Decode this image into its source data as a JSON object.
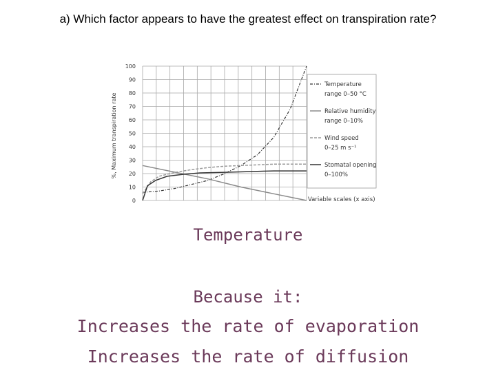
{
  "question": "a) Which factor appears to have the greatest effect on transpiration rate?",
  "answer": {
    "title": "Temperature",
    "because": "Because it:",
    "reasons": [
      "Increases the rate of evaporation",
      "Increases the rate of diffusion"
    ]
  },
  "colors": {
    "answer_text": "#6b3a5a",
    "grid": "#a8a8a8",
    "series_dark": "#333333",
    "series_mid": "#8a8a8a",
    "series_light": "#9a9a9a"
  },
  "chart_data": {
    "type": "line",
    "ylabel": "%, Maximum transpiration rate",
    "xlabel": "Variable scales (x axis)",
    "ylim": [
      0,
      100
    ],
    "xlim": [
      0,
      1
    ],
    "yticks": [
      0,
      10,
      20,
      30,
      40,
      50,
      60,
      70,
      80,
      90,
      100
    ],
    "grid": true,
    "legend_position": "right",
    "series": [
      {
        "name": "Temperature range 0–50 °C",
        "name_lines": [
          "Temperature",
          "range 0–50 °C"
        ],
        "style": "dash-dot",
        "x": [
          0,
          0.1,
          0.2,
          0.3,
          0.4,
          0.5,
          0.6,
          0.7,
          0.8,
          0.9,
          1.0
        ],
        "y": [
          6,
          7,
          9,
          12,
          15,
          20,
          26,
          34,
          47,
          68,
          100
        ]
      },
      {
        "name": "Relative humidity range 0–10%",
        "name_lines": [
          "Relative humidity",
          "range 0–10%"
        ],
        "style": "solid-grey",
        "x": [
          0,
          0.2,
          0.4,
          0.6,
          0.8,
          1.0
        ],
        "y": [
          26,
          21,
          16,
          10,
          5,
          0
        ]
      },
      {
        "name": "Wind speed 0–25 m s⁻¹",
        "name_lines": [
          "Wind speed",
          "0–25 m s⁻¹"
        ],
        "style": "dashed",
        "x": [
          0,
          0.05,
          0.1,
          0.2,
          0.3,
          0.4,
          0.5,
          0.6,
          0.7,
          0.8,
          0.9,
          1.0
        ],
        "y": [
          5,
          14,
          18,
          21,
          23,
          24.5,
          25.5,
          26,
          26.5,
          27,
          27,
          27
        ]
      },
      {
        "name": "Stomatal opening 0–100%",
        "name_lines": [
          "Stomatal opening",
          "0–100%"
        ],
        "style": "solid-dark",
        "x": [
          0,
          0.03,
          0.08,
          0.15,
          0.25,
          0.35,
          0.5,
          0.65,
          0.8,
          1.0
        ],
        "y": [
          0,
          11,
          15,
          18,
          19.5,
          20.5,
          21,
          21.5,
          22,
          22
        ]
      }
    ]
  }
}
